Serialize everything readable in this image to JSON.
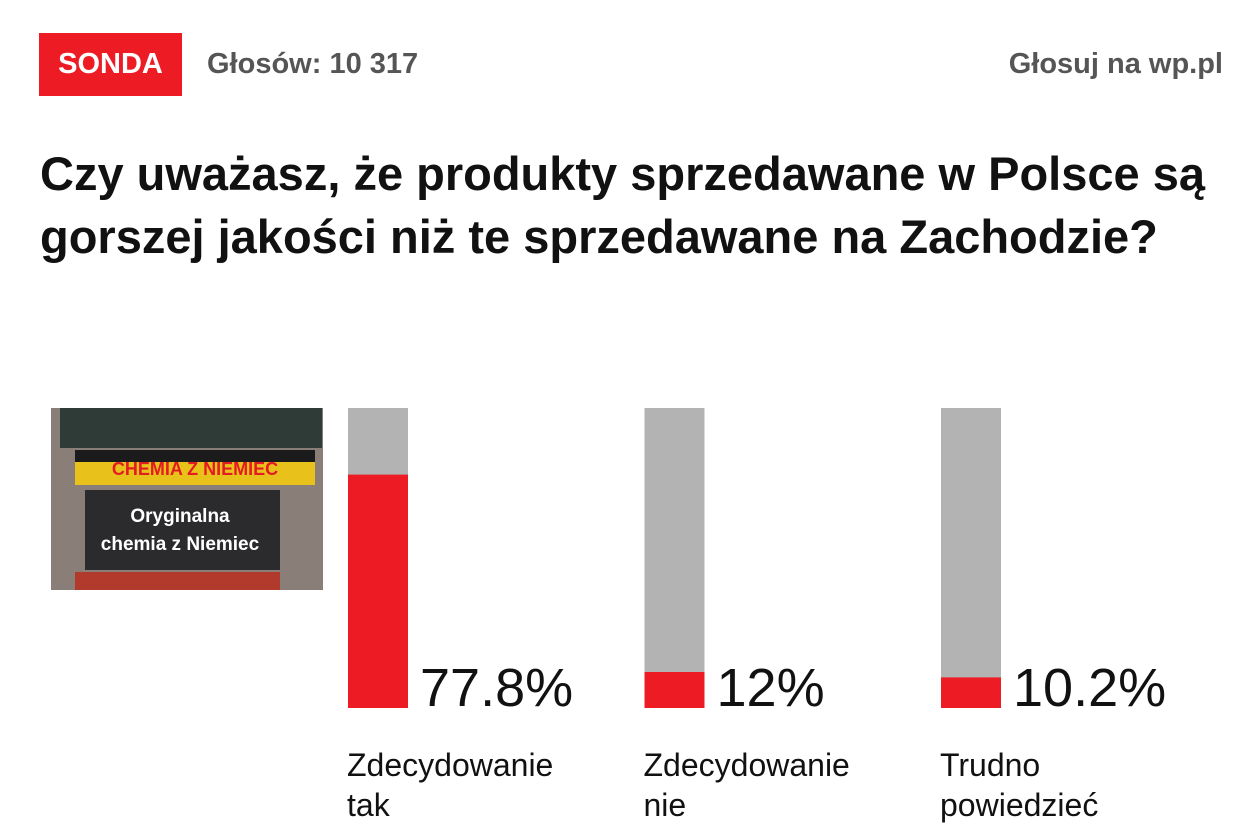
{
  "header": {
    "badge": "SONDA",
    "votes": "Głosów: 10 317",
    "link": "Głosuj na wp.pl"
  },
  "image": {
    "sign": "CHEMIA Z NIEMIEC",
    "board": [
      "Oryginalna",
      "chemia z Niemiec"
    ]
  },
  "chart_data": {
    "type": "bar",
    "title": "Czy uważasz, że produkty sprzedawane w Polsce są gorszej jakości niż te sprzedawane na Zachodzie?",
    "categories": [
      "Zdecydowanie tak",
      "Zdecydowanie nie",
      "Trudno powiedzieć"
    ],
    "values": [
      77.8,
      12,
      10.2
    ],
    "value_labels": [
      "77.8%",
      "12%",
      "10.2%"
    ],
    "color": "#ed1c24",
    "track_color": "#b3b3b3",
    "ylim": [
      0,
      100
    ]
  }
}
